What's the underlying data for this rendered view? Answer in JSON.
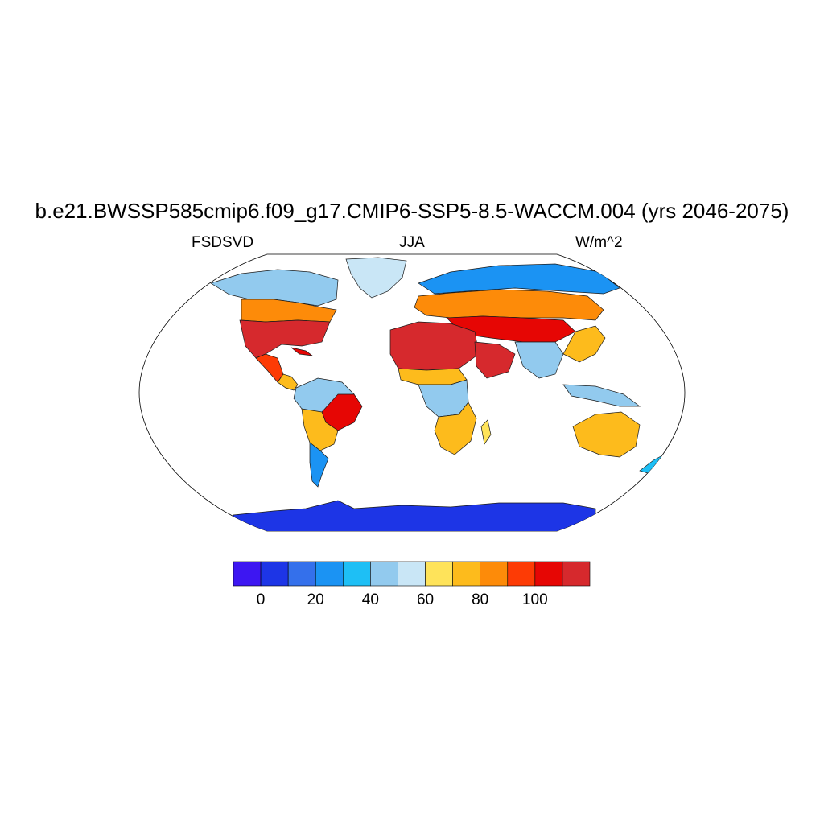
{
  "header": {
    "title": "b.e21.BWSSP585cmip6.f09_g17.CMIP6-SSP5-8.5-WACCM.004 (yrs 2046-2075)",
    "left_label": "FSDSVD",
    "center_label": "JJA",
    "right_label": "W/m^2"
  },
  "colorbar": {
    "colors": [
      "#3d16f2",
      "#1d35e6",
      "#3470eb",
      "#1b93f3",
      "#1ebff5",
      "#92caee",
      "#c9e6f6",
      "#fee35a",
      "#fdbb1c",
      "#fd8b09",
      "#fd3b05",
      "#e60604",
      "#d6292d"
    ],
    "tick_labels": [
      "0",
      "20",
      "40",
      "60",
      "80",
      "100"
    ]
  },
  "chart_data": {
    "type": "heatmap",
    "projection": "robinson",
    "variable": "FSDSVD",
    "season": "JJA",
    "units": "W/m^2",
    "levels": [
      0,
      10,
      20,
      30,
      40,
      50,
      60,
      70,
      80,
      90,
      100,
      110
    ],
    "regions": [
      {
        "name": "Antarctica",
        "value": 5
      },
      {
        "name": "Greenland",
        "value": 45
      },
      {
        "name": "Sahara",
        "value": 115
      },
      {
        "name": "Arabian Peninsula",
        "value": 115
      },
      {
        "name": "Southwestern US",
        "value": 110
      },
      {
        "name": "Central Asia",
        "value": 100
      },
      {
        "name": "Central Africa",
        "value": 35
      },
      {
        "name": "Amazon",
        "value": 40
      },
      {
        "name": "Eastern Brazil",
        "value": 100
      },
      {
        "name": "Southern Africa",
        "value": 80
      },
      {
        "name": "Australia",
        "value": 75
      },
      {
        "name": "Siberia",
        "value": 40
      },
      {
        "name": "Southern South America",
        "value": 25
      }
    ]
  }
}
